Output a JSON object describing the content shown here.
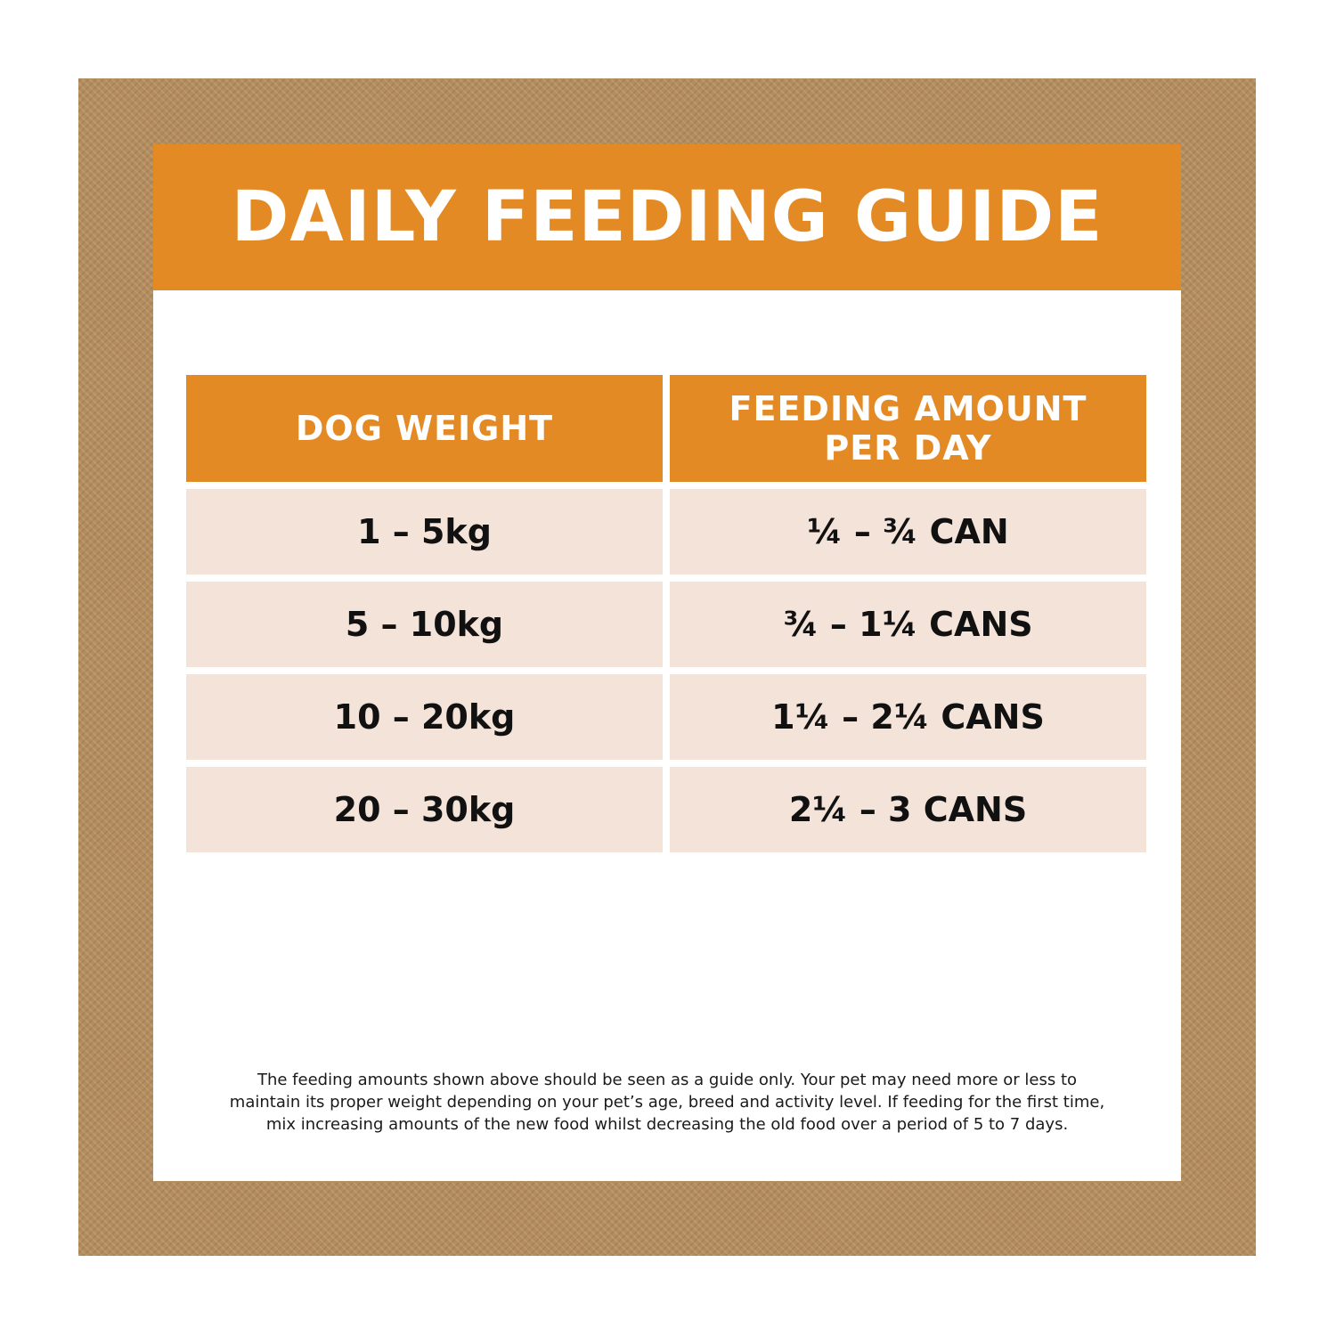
{
  "title": "DAILY FEEDING GUIDE",
  "colors": {
    "accent_orange": "#e48a25",
    "row_background": "#f3e3d9",
    "frame_tan": "#b48d5e"
  },
  "table": {
    "headers": {
      "weight": "DOG WEIGHT",
      "amount_line1": "FEEDING AMOUNT",
      "amount_line2": "PER DAY"
    },
    "rows": [
      {
        "weight": "1 – 5kg",
        "amount": "¼ – ¾ CAN"
      },
      {
        "weight": "5 – 10kg",
        "amount": "¾ – 1¼ CANS"
      },
      {
        "weight": "10 – 20kg",
        "amount": "1¼ – 2¼ CANS"
      },
      {
        "weight": "20 – 30kg",
        "amount": "2¼ – 3 CANS"
      }
    ]
  },
  "note": {
    "line1": "The feeding amounts shown above should be seen as a guide only. Your pet may need more or less to",
    "line2": "maintain its proper weight depending on your pet’s age, breed and activity level. If feeding for the first time,",
    "line3": "mix increasing amounts of the new food whilst decreasing the old food over a period of 5 to 7 days."
  }
}
